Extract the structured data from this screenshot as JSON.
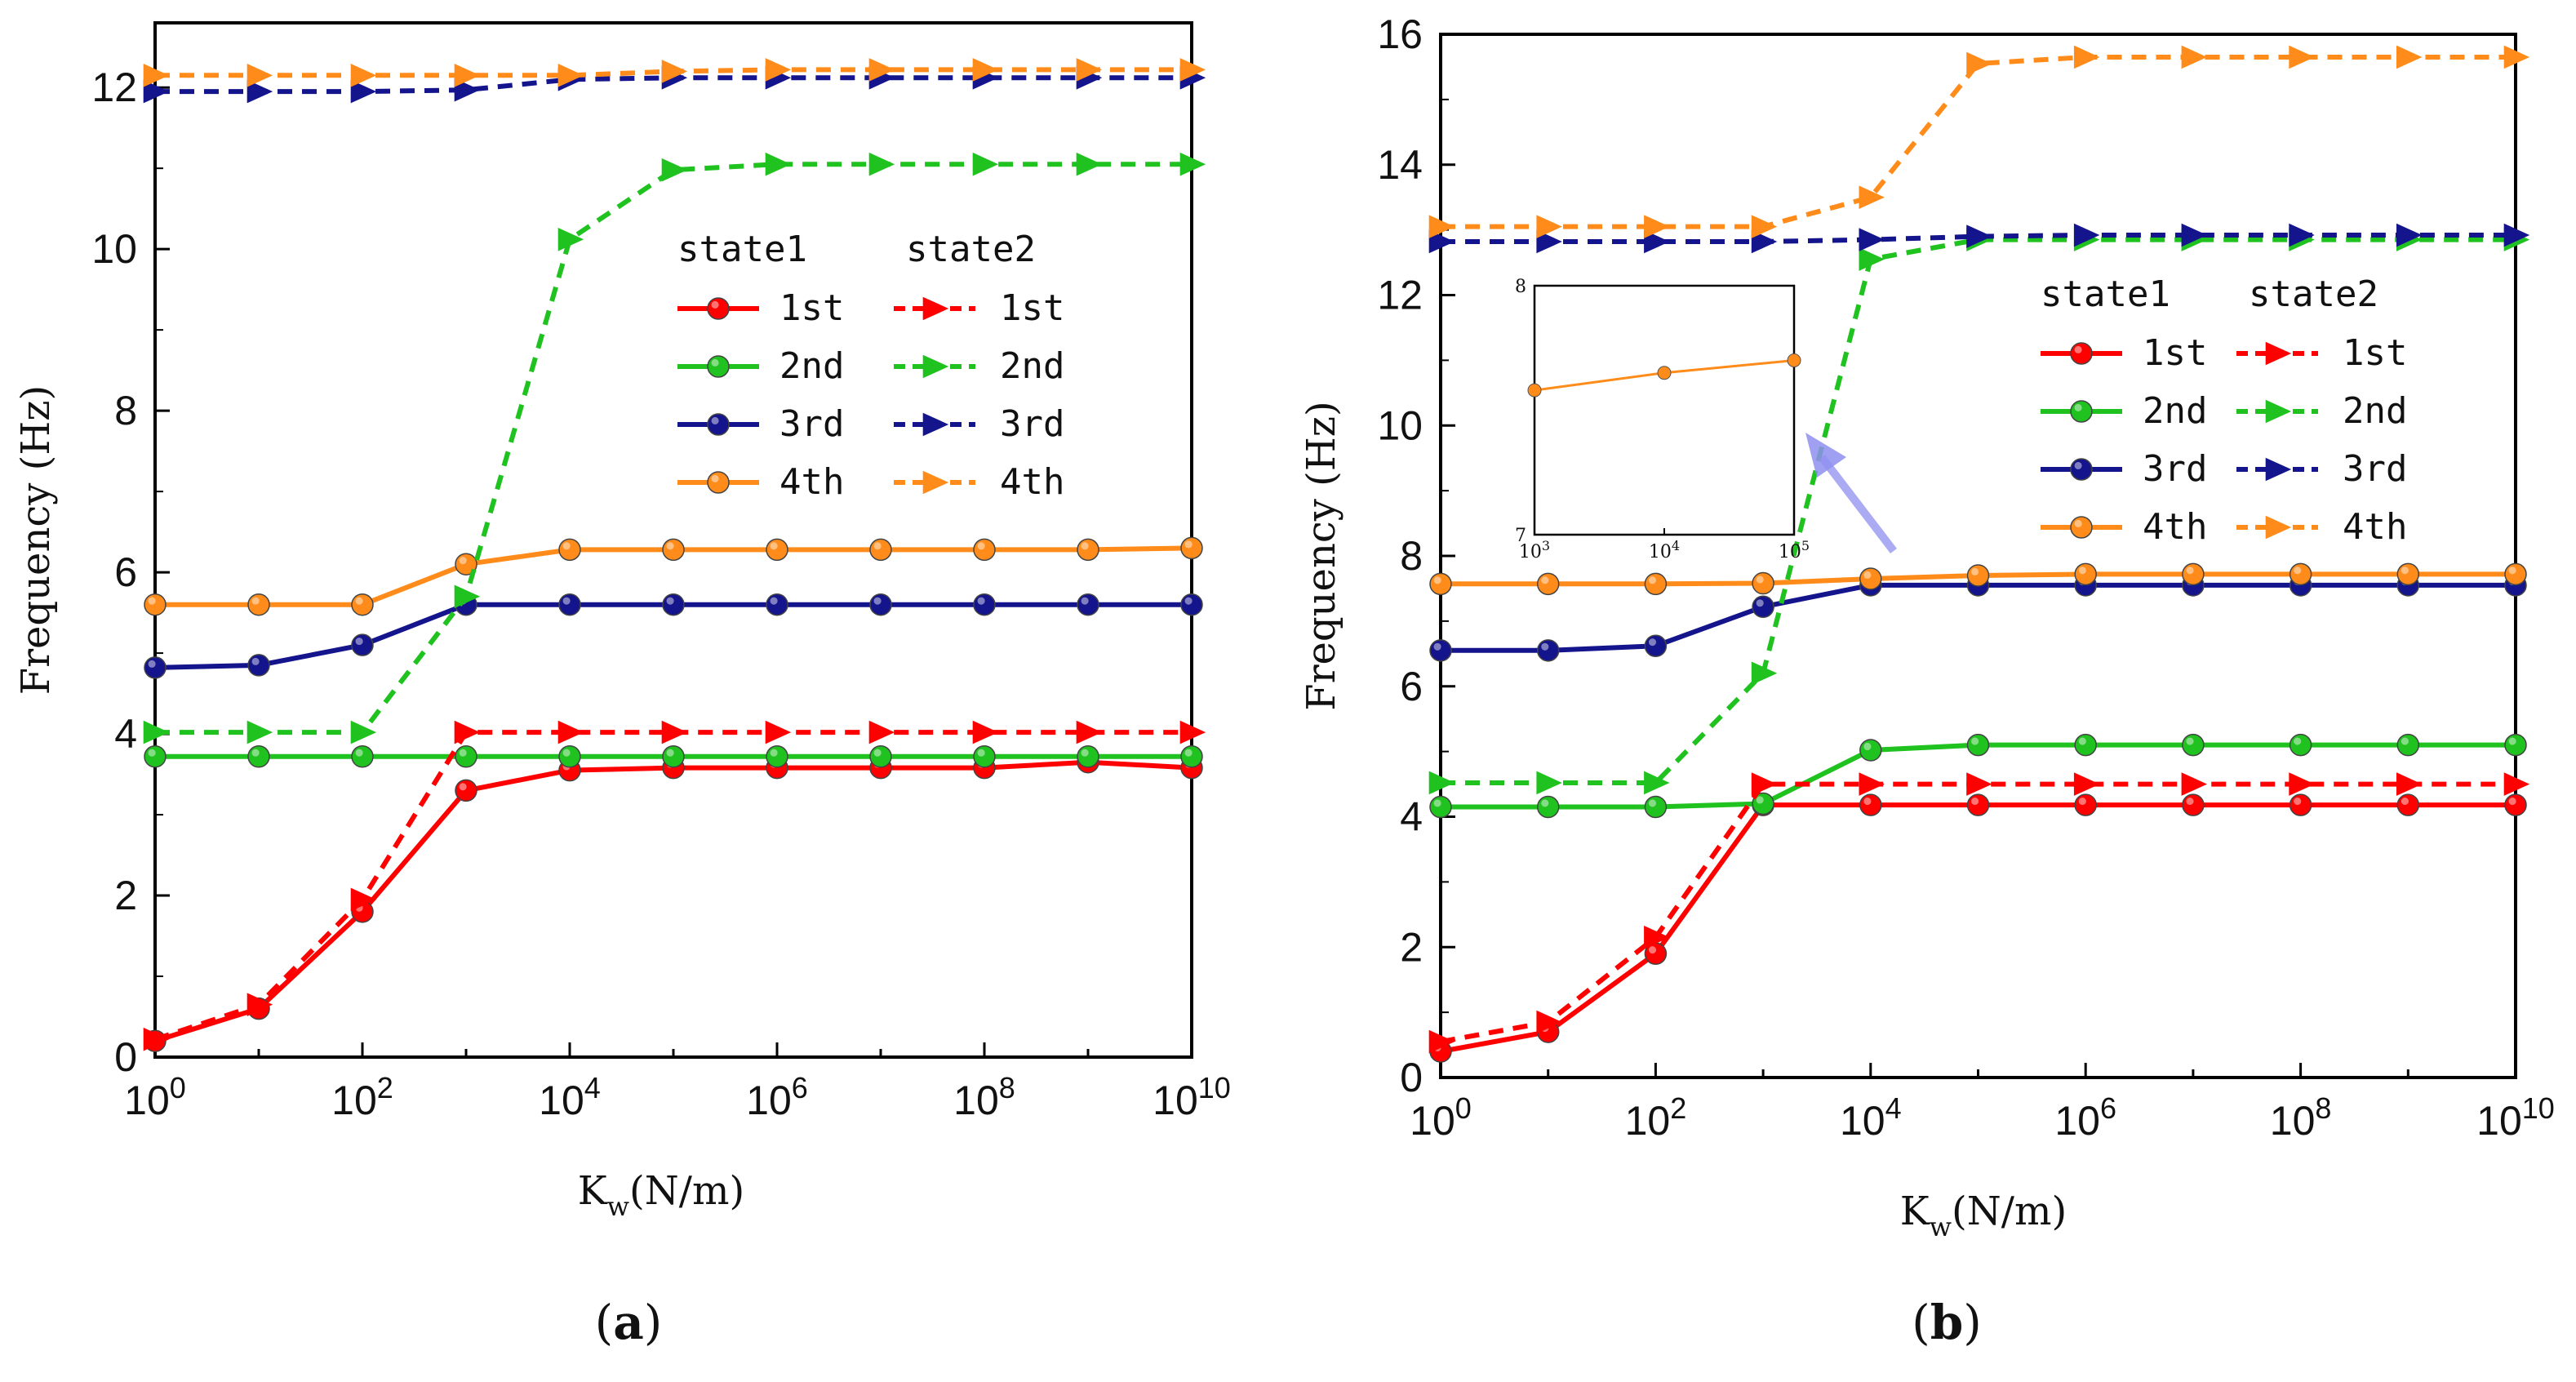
{
  "chart_data": [
    {
      "type": "line",
      "panel": "a",
      "caption_letter": "a",
      "xscale": "log",
      "x": [
        1,
        10,
        100,
        1000,
        10000,
        100000,
        1000000,
        10000000,
        100000000,
        1000000000,
        10000000000
      ],
      "xticks": [
        {
          "base": "10",
          "exp": "0"
        },
        {
          "base": "10",
          "exp": "2"
        },
        {
          "base": "10",
          "exp": "4"
        },
        {
          "base": "10",
          "exp": "6"
        },
        {
          "base": "10",
          "exp": "8"
        },
        {
          "base": "10",
          "exp": "10"
        }
      ],
      "yticks": [
        "0",
        "2",
        "4",
        "6",
        "8",
        "10",
        "12"
      ],
      "ylim": [
        0,
        12.8
      ],
      "ylabel": "Frequency (Hz)",
      "xlabel_main": "K",
      "xlabel_sub": "w",
      "xlabel_unit": "(N/m)",
      "legend_headers": [
        "state1",
        "state2"
      ],
      "legend_labels": [
        "1st",
        "2nd",
        "3rd",
        "4th"
      ],
      "series": [
        {
          "name": "1st",
          "state": "state1",
          "color": "#ff0000",
          "marker": "circle",
          "dash": false,
          "values": [
            0.2,
            0.6,
            1.8,
            3.3,
            3.55,
            3.58,
            3.58,
            3.58,
            3.58,
            3.65,
            3.58
          ]
        },
        {
          "name": "2nd",
          "state": "state1",
          "color": "#1fc21f",
          "marker": "circle",
          "dash": false,
          "values": [
            3.72,
            3.72,
            3.72,
            3.72,
            3.72,
            3.72,
            3.72,
            3.72,
            3.72,
            3.72,
            3.72
          ]
        },
        {
          "name": "3rd",
          "state": "state1",
          "color": "#14148c",
          "marker": "circle",
          "dash": false,
          "values": [
            4.82,
            4.85,
            5.1,
            5.6,
            5.6,
            5.6,
            5.6,
            5.6,
            5.6,
            5.6,
            5.6
          ]
        },
        {
          "name": "4th",
          "state": "state1",
          "color": "#ff8c1a",
          "marker": "circle",
          "dash": false,
          "values": [
            5.6,
            5.6,
            5.6,
            6.1,
            6.28,
            6.28,
            6.28,
            6.28,
            6.28,
            6.28,
            6.3
          ]
        },
        {
          "name": "1st",
          "state": "state2",
          "color": "#ff0000",
          "marker": "triangle",
          "dash": true,
          "values": [
            0.22,
            0.65,
            1.95,
            4.02,
            4.02,
            4.02,
            4.02,
            4.02,
            4.02,
            4.02,
            4.02
          ]
        },
        {
          "name": "2nd",
          "state": "state2",
          "color": "#1fc21f",
          "marker": "triangle",
          "dash": true,
          "values": [
            4.02,
            4.02,
            4.02,
            5.7,
            10.12,
            10.98,
            11.05,
            11.05,
            11.05,
            11.05,
            11.05
          ]
        },
        {
          "name": "3rd",
          "state": "state2",
          "color": "#14148c",
          "marker": "triangle",
          "dash": true,
          "values": [
            11.95,
            11.95,
            11.95,
            11.97,
            12.1,
            12.12,
            12.12,
            12.12,
            12.12,
            12.12,
            12.12
          ]
        },
        {
          "name": "4th",
          "state": "state2",
          "color": "#ff8c1a",
          "marker": "triangle",
          "dash": true,
          "values": [
            12.15,
            12.15,
            12.15,
            12.15,
            12.15,
            12.2,
            12.22,
            12.22,
            12.22,
            12.22,
            12.22
          ]
        }
      ]
    },
    {
      "type": "line",
      "panel": "b",
      "caption_letter": "b",
      "xscale": "log",
      "x": [
        1,
        10,
        100,
        1000,
        10000,
        100000,
        1000000,
        10000000,
        100000000,
        1000000000,
        10000000000
      ],
      "xticks": [
        {
          "base": "10",
          "exp": "0"
        },
        {
          "base": "10",
          "exp": "2"
        },
        {
          "base": "10",
          "exp": "4"
        },
        {
          "base": "10",
          "exp": "6"
        },
        {
          "base": "10",
          "exp": "8"
        },
        {
          "base": "10",
          "exp": "10"
        }
      ],
      "yticks": [
        "0",
        "2",
        "4",
        "6",
        "8",
        "10",
        "12",
        "14",
        "16"
      ],
      "ylim": [
        0,
        16
      ],
      "ylabel": "Frequency (Hz)",
      "xlabel_main": "K",
      "xlabel_sub": "w",
      "xlabel_unit": "(N/m)",
      "legend_headers": [
        "state1",
        "state2"
      ],
      "legend_labels": [
        "1st",
        "2nd",
        "3rd",
        "4th"
      ],
      "series": [
        {
          "name": "1st",
          "state": "state1",
          "color": "#ff0000",
          "marker": "circle",
          "dash": false,
          "values": [
            0.4,
            0.7,
            1.9,
            4.18,
            4.18,
            4.18,
            4.18,
            4.18,
            4.18,
            4.18,
            4.18
          ]
        },
        {
          "name": "2nd",
          "state": "state1",
          "color": "#1fc21f",
          "marker": "circle",
          "dash": false,
          "values": [
            4.15,
            4.15,
            4.15,
            4.2,
            5.02,
            5.1,
            5.1,
            5.1,
            5.1,
            5.1,
            5.1
          ]
        },
        {
          "name": "3rd",
          "state": "state1",
          "color": "#14148c",
          "marker": "circle",
          "dash": false,
          "values": [
            6.55,
            6.55,
            6.62,
            7.22,
            7.55,
            7.55,
            7.55,
            7.55,
            7.55,
            7.55,
            7.55
          ]
        },
        {
          "name": "4th",
          "state": "state1",
          "color": "#ff8c1a",
          "marker": "circle",
          "dash": false,
          "values": [
            7.57,
            7.57,
            7.57,
            7.58,
            7.65,
            7.7,
            7.72,
            7.72,
            7.72,
            7.72,
            7.72
          ]
        },
        {
          "name": "1st",
          "state": "state2",
          "color": "#ff0000",
          "marker": "triangle",
          "dash": true,
          "values": [
            0.55,
            0.85,
            2.15,
            4.5,
            4.5,
            4.5,
            4.5,
            4.5,
            4.5,
            4.5,
            4.5
          ]
        },
        {
          "name": "2nd",
          "state": "state2",
          "color": "#1fc21f",
          "marker": "triangle",
          "dash": true,
          "values": [
            4.52,
            4.52,
            4.52,
            6.2,
            12.55,
            12.85,
            12.85,
            12.85,
            12.85,
            12.85,
            12.85
          ]
        },
        {
          "name": "3rd",
          "state": "state2",
          "color": "#14148c",
          "marker": "triangle",
          "dash": true,
          "values": [
            12.82,
            12.82,
            12.82,
            12.82,
            12.85,
            12.9,
            12.92,
            12.92,
            12.92,
            12.92,
            12.92
          ]
        },
        {
          "name": "4th",
          "state": "state2",
          "color": "#ff8c1a",
          "marker": "triangle",
          "dash": true,
          "values": [
            13.05,
            13.05,
            13.05,
            13.05,
            13.5,
            15.55,
            15.65,
            15.65,
            15.65,
            15.65,
            15.65
          ]
        }
      ],
      "inset": {
        "series_name": "4th",
        "color": "#ff8c1a",
        "x": [
          1000,
          10000,
          100000
        ],
        "values": [
          7.58,
          7.65,
          7.7
        ],
        "ylim": [
          7,
          8
        ],
        "yticks": [
          "7",
          "8"
        ],
        "xticks": [
          {
            "base": "10",
            "exp": "3"
          },
          {
            "base": "10",
            "exp": "4"
          },
          {
            "base": "10",
            "exp": "5"
          }
        ],
        "arrow_color": "#8f8ff0"
      }
    }
  ]
}
